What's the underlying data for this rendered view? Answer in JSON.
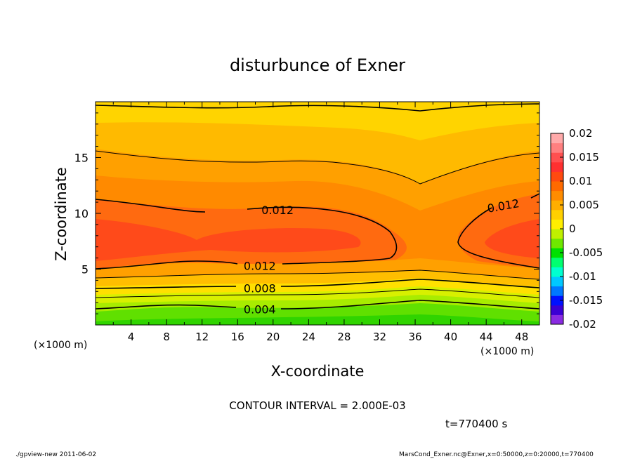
{
  "chart_data": {
    "type": "contour",
    "title": "disturbunce of Exner",
    "xlabel": "X-coordinate",
    "ylabel": "Z-coordinate",
    "x_unit_label": "(×1000 m)",
    "x_unit_label_left": "(×1000 m)",
    "xlim": [
      0,
      50
    ],
    "ylim": [
      0,
      20
    ],
    "x_ticks": [
      4,
      8,
      12,
      16,
      20,
      24,
      28,
      32,
      36,
      40,
      44,
      48
    ],
    "y_ticks": [
      5,
      10,
      15
    ],
    "contour_interval_text": "CONTOUR INTERVAL = 2.000E-03",
    "time_text": "t=770400 s",
    "colorbar": {
      "ticks": [
        "0.02",
        "0.015",
        "0.01",
        "0.005",
        "0",
        "-0.005",
        "-0.01",
        "-0.015",
        "-0.02"
      ],
      "range": [
        -0.02,
        0.02
      ],
      "colors": [
        "#8a2be2",
        "#3b00d4",
        "#0010ff",
        "#0078ff",
        "#00c8ff",
        "#00ffd0",
        "#00ff70",
        "#00e000",
        "#6fe800",
        "#c0f000",
        "#ffee00",
        "#ffd000",
        "#ffae00",
        "#ff8c00",
        "#ff6a00",
        "#ff4a10",
        "#ff3030",
        "#ff5050",
        "#ff8080",
        "#ffaaaa"
      ]
    },
    "contour_labels": [
      {
        "value": "0.012",
        "x": 20.5,
        "z": 10.3
      },
      {
        "value": "0.012",
        "x": 46.0,
        "z": 10.7
      },
      {
        "value": "0.012",
        "x": 18.5,
        "z": 5.3
      },
      {
        "value": "0.008",
        "x": 18.5,
        "z": 3.3
      },
      {
        "value": "0.004",
        "x": 18.5,
        "z": 1.4
      }
    ]
  },
  "footer": {
    "left": "./gpview-new   2011-06-02",
    "right": "MarsCond_Exner.nc@Exner,x=0:50000,z=0:20000,t=770400"
  }
}
